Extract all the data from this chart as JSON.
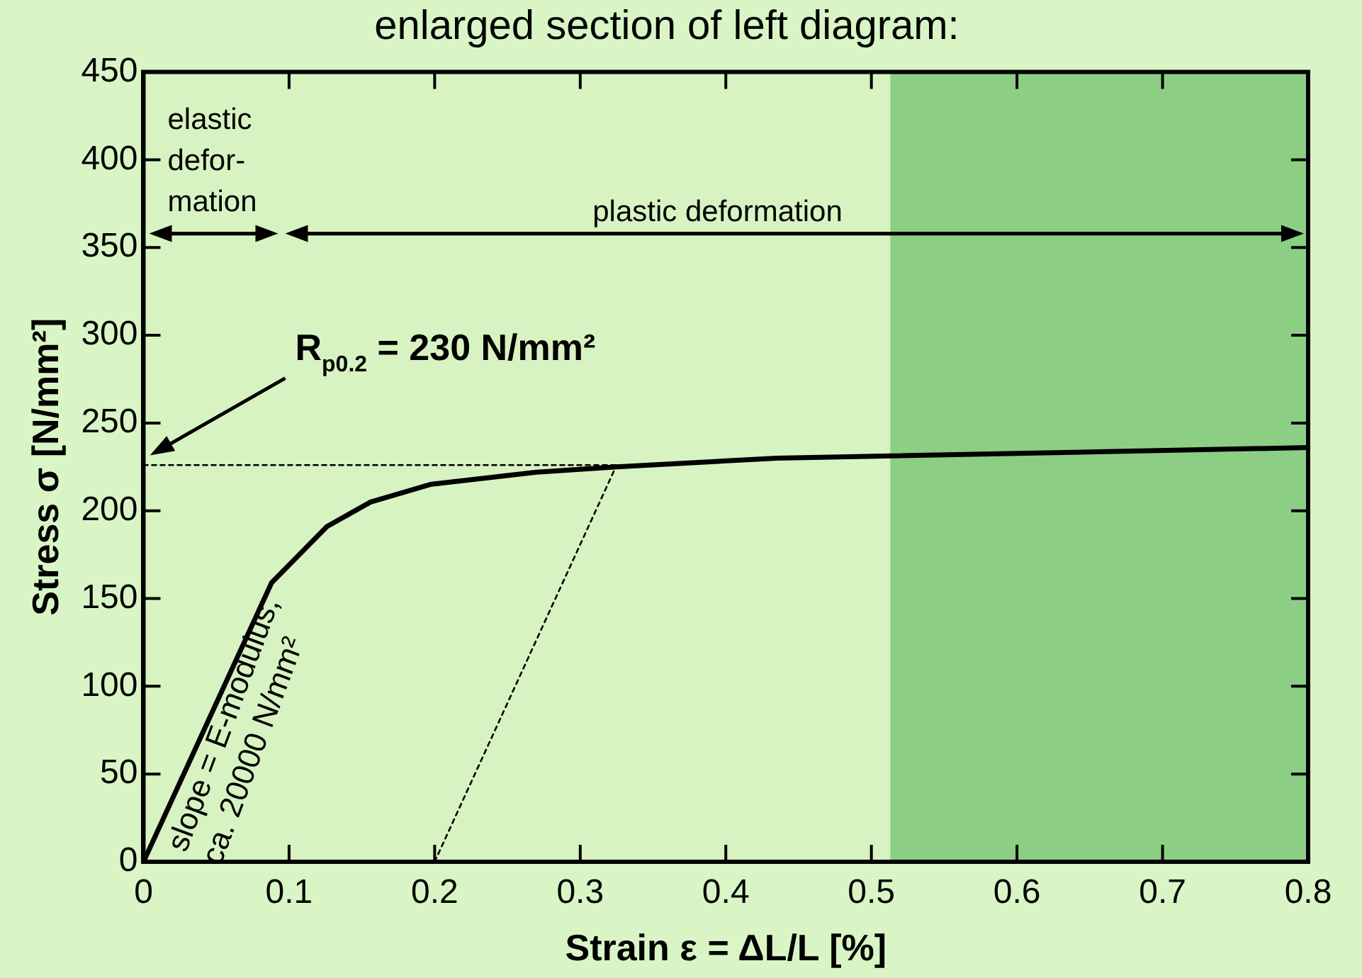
{
  "chart_data": {
    "type": "line",
    "title": "enlarged section of left diagram:",
    "xlabel": "Strain ε = ΔL/L [%]",
    "ylabel": "Stress σ [N/mm²]",
    "x": [
      0,
      0.088,
      0.126,
      0.156,
      0.197,
      0.27,
      0.325,
      0.435,
      0.8
    ],
    "series": [
      {
        "color": "#000000",
        "line_style": "solid",
        "values": [
          0,
          159,
          191,
          205,
          215,
          222,
          225,
          230,
          236
        ]
      },
      {
        "color": "#000000",
        "line_style": "dotted",
        "x": [
          0,
          0.325
        ],
        "values": [
          226,
          226
        ]
      },
      {
        "color": "#000000",
        "line_style": "dotted",
        "x": [
          0.2,
          0.325
        ],
        "values": [
          0,
          226
        ]
      }
    ],
    "xlim": [
      0,
      0.8
    ],
    "xticks": [
      0,
      0.1,
      0.2,
      0.3,
      0.4,
      0.5,
      0.6,
      0.7,
      0.8
    ],
    "ylim": [
      0,
      450
    ],
    "yticks": [
      0,
      50,
      100,
      150,
      200,
      250,
      300,
      350,
      400,
      450
    ],
    "bands": [
      {
        "axis": "x",
        "from": 0.513,
        "to": 0.8,
        "color": "#8ccf84"
      }
    ],
    "marker": "none",
    "legend": false,
    "annotations": [
      "R$_{p0.2}$ = 230 N/mm²",
      "slope = E-modulus,\nca. 20000 N/mm²",
      "elastic\ndefor-\nmation",
      "plastic deformation"
    ]
  }
}
